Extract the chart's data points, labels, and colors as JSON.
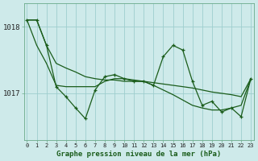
{
  "title": "Graphe pression niveau de la mer (hPa)",
  "background_color": "#ceeaea",
  "grid_color": "#9ecece",
  "line_color": "#1a5c1a",
  "x_labels": [
    "0",
    "1",
    "2",
    "3",
    "4",
    "5",
    "6",
    "7",
    "8",
    "9",
    "10",
    "11",
    "12",
    "13",
    "14",
    "15",
    "16",
    "17",
    "18",
    "19",
    "20",
    "21",
    "22",
    "23"
  ],
  "y_ticks": [
    1017,
    1018
  ],
  "ylim": [
    1016.3,
    1018.35
  ],
  "xlim": [
    -0.3,
    23.3
  ],
  "hours": [
    0,
    1,
    2,
    3,
    4,
    5,
    6,
    7,
    8,
    9,
    10,
    11,
    12,
    13,
    14,
    15,
    16,
    17,
    18,
    19,
    20,
    21,
    22,
    23
  ],
  "pressure_main": [
    1018.1,
    1018.1,
    1017.72,
    1017.1,
    1016.95,
    1016.78,
    1016.62,
    1017.05,
    1017.25,
    1017.28,
    1017.22,
    1017.18,
    1017.18,
    1017.12,
    1017.55,
    1017.72,
    1017.65,
    1017.18,
    1016.82,
    1016.88,
    1016.72,
    1016.78,
    1016.65,
    1017.22
  ],
  "pressure_line2": [
    1018.1,
    1017.72,
    1017.45,
    1017.12,
    1017.1,
    1017.1,
    1017.1,
    1017.1,
    1017.18,
    1017.22,
    1017.22,
    1017.2,
    1017.18,
    1017.12,
    1017.05,
    1016.98,
    1016.9,
    1016.82,
    1016.78,
    1016.75,
    1016.75,
    1016.78,
    1016.82,
    1017.22
  ],
  "pressure_line3": [
    1018.1,
    1018.1,
    1017.72,
    1017.45,
    1017.38,
    1017.32,
    1017.25,
    1017.22,
    1017.2,
    1017.2,
    1017.18,
    1017.18,
    1017.18,
    1017.16,
    1017.14,
    1017.12,
    1017.1,
    1017.08,
    1017.05,
    1017.02,
    1017.0,
    1016.98,
    1016.95,
    1017.22
  ]
}
